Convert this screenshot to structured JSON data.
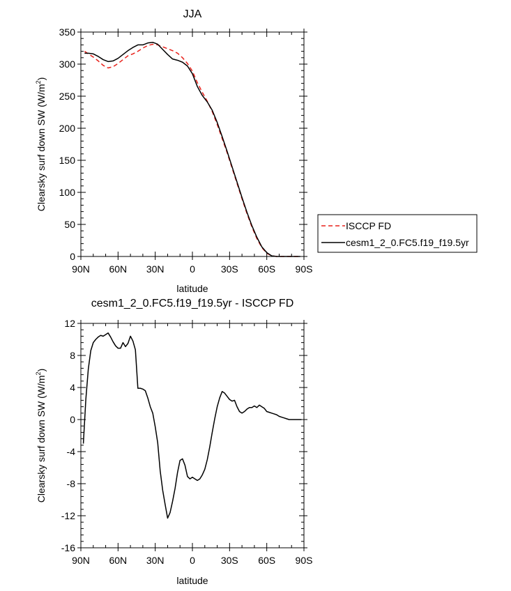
{
  "chart_data": [
    {
      "type": "line",
      "title": "JJA",
      "xlabel": "latitude",
      "ylabel": "Clearsky surf down SW (W/m",
      "ylabel_sup": "2",
      "ylabel_close": ")",
      "xlim": [
        90,
        -90
      ],
      "ylim": [
        0,
        350
      ],
      "xticks": [
        90,
        60,
        30,
        0,
        -30,
        -60,
        -90
      ],
      "xtick_labels": [
        "90N",
        "60N",
        "30N",
        "0",
        "30S",
        "60S",
        "90S"
      ],
      "yticks": [
        0,
        50,
        100,
        150,
        200,
        250,
        300,
        350
      ],
      "ytick_labels": [
        "0",
        "50",
        "100",
        "150",
        "200",
        "250",
        "300",
        "350"
      ],
      "legend": "right",
      "series": [
        {
          "name": "ISCCP FD",
          "color": "#e8201a",
          "dash": "dashed",
          "x": [
            87,
            84,
            80,
            76,
            72,
            68,
            64,
            60,
            56,
            52,
            48,
            44,
            40,
            36,
            32,
            28,
            24,
            20,
            16,
            12,
            8,
            4,
            0,
            -4,
            -8,
            -12,
            -16,
            -20,
            -24,
            -28,
            -32,
            -36,
            -40,
            -44,
            -48,
            -52,
            -56,
            -60,
            -64,
            -68,
            -72,
            -76,
            -80,
            -84,
            -87
          ],
          "y": [
            320,
            316,
            311,
            305,
            298,
            294,
            296,
            301,
            307,
            313,
            316,
            320,
            325,
            329,
            331,
            330,
            327,
            324,
            321,
            317,
            310,
            301,
            289,
            271,
            256,
            242,
            226,
            206,
            184,
            162,
            138,
            114,
            90,
            67,
            46,
            28,
            14,
            5,
            1,
            0,
            0,
            0,
            0,
            0,
            0
          ]
        },
        {
          "name": "cesm1_2_0.FC5.f19_f19.5yr",
          "color": "#000000",
          "dash": "solid",
          "x": [
            87,
            84,
            80,
            76,
            72,
            68,
            64,
            60,
            56,
            52,
            48,
            44,
            40,
            36,
            32,
            28,
            24,
            20,
            16,
            12,
            8,
            4,
            0,
            -4,
            -8,
            -12,
            -16,
            -20,
            -24,
            -28,
            -32,
            -36,
            -40,
            -44,
            -48,
            -52,
            -56,
            -60,
            -64,
            -68,
            -72,
            -76,
            -80,
            -84,
            -87
          ],
          "y": [
            317,
            317,
            316,
            312,
            307,
            304,
            305,
            309,
            315,
            321,
            326,
            330,
            330,
            333,
            334,
            331,
            323,
            315,
            308,
            306,
            303,
            297,
            285,
            265,
            251,
            241,
            228,
            209,
            187,
            164,
            140,
            116,
            92,
            69,
            48,
            30,
            15,
            6,
            1,
            0,
            0,
            0,
            0,
            0,
            0
          ]
        }
      ]
    },
    {
      "type": "line",
      "title": "cesm1_2_0.FC5.f19_f19.5yr - ISCCP FD",
      "xlabel": "latitude",
      "ylabel": "Clearsky surf down SW (W/m",
      "ylabel_sup": "2",
      "ylabel_close": ")",
      "xlim": [
        90,
        -90
      ],
      "ylim": [
        -16,
        12
      ],
      "xticks": [
        90,
        60,
        30,
        0,
        -30,
        -60,
        -90
      ],
      "xtick_labels": [
        "90N",
        "60N",
        "30N",
        "0",
        "30S",
        "60S",
        "90S"
      ],
      "yticks": [
        -16,
        -12,
        -8,
        -4,
        0,
        4,
        8,
        12
      ],
      "ytick_labels": [
        "-16",
        "-12",
        "-8",
        "-4",
        "0",
        "4",
        "8",
        "12"
      ],
      "series": [
        {
          "color": "#000000",
          "dash": "solid",
          "x": [
            88,
            86,
            84,
            82,
            80,
            78,
            76,
            74,
            72,
            70,
            68,
            66,
            64,
            62,
            60,
            58,
            56,
            54,
            52,
            50,
            48,
            46,
            44,
            42,
            40,
            38,
            36,
            34,
            32,
            30,
            28,
            26,
            24,
            22,
            20,
            18,
            16,
            14,
            12,
            10,
            8,
            6,
            4,
            2,
            0,
            -2,
            -4,
            -6,
            -8,
            -10,
            -12,
            -14,
            -16,
            -18,
            -20,
            -22,
            -24,
            -26,
            -28,
            -30,
            -32,
            -34,
            -36,
            -38,
            -40,
            -42,
            -44,
            -46,
            -48,
            -50,
            -52,
            -54,
            -56,
            -58,
            -60,
            -62,
            -64,
            -66,
            -68,
            -70,
            -72,
            -74,
            -76,
            -78,
            -80,
            -82,
            -84,
            -86,
            -88
          ],
          "y": [
            -3.0,
            2.5,
            6.3,
            8.6,
            9.6,
            10.0,
            10.3,
            10.5,
            10.4,
            10.6,
            10.8,
            10.3,
            9.7,
            9.2,
            8.9,
            8.9,
            9.6,
            9.1,
            9.5,
            10.4,
            9.8,
            8.7,
            3.9,
            3.9,
            3.8,
            3.6,
            2.7,
            1.6,
            0.8,
            -0.9,
            -2.9,
            -6.4,
            -8.8,
            -10.6,
            -12.3,
            -11.6,
            -10.2,
            -8.6,
            -6.6,
            -5.1,
            -4.9,
            -5.7,
            -7.1,
            -7.4,
            -7.2,
            -7.4,
            -7.6,
            -7.4,
            -6.9,
            -6.2,
            -5.0,
            -3.4,
            -1.6,
            0.1,
            1.6,
            2.7,
            3.5,
            3.3,
            2.9,
            2.5,
            2.3,
            2.4,
            1.6,
            1.0,
            0.8,
            1.0,
            1.3,
            1.5,
            1.5,
            1.7,
            1.5,
            1.8,
            1.6,
            1.4,
            1.0,
            0.9,
            0.8,
            0.7,
            0.6,
            0.4,
            0.3,
            0.2,
            0.1,
            0.0,
            0.0,
            0.0,
            0.0,
            0.0,
            0.0
          ]
        }
      ]
    }
  ]
}
